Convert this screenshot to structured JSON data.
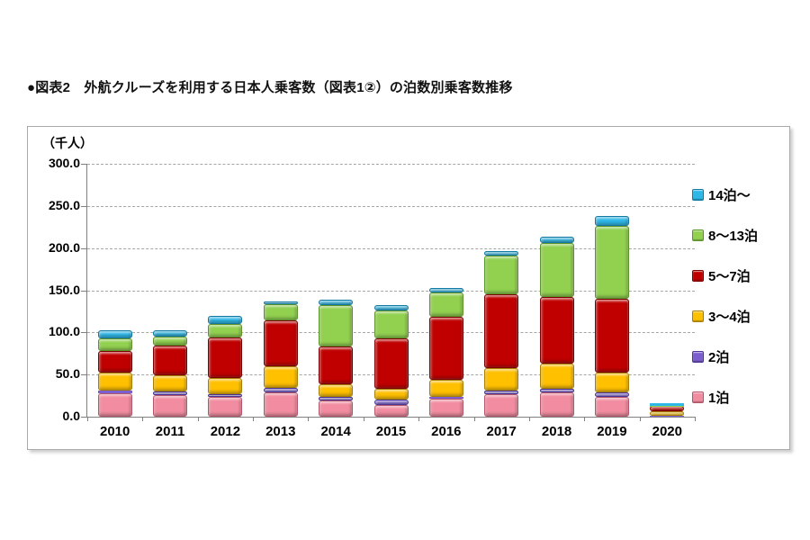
{
  "page": {
    "title": "●図表2　外航クルーズを利用する日本人乗客数（図表1②）の泊数別乗客数推移"
  },
  "chart_data": {
    "type": "bar",
    "stacked": true,
    "unit_label": "（千人）",
    "categories": [
      "2010",
      "2011",
      "2012",
      "2013",
      "2014",
      "2015",
      "2016",
      "2017",
      "2018",
      "2019",
      "2020"
    ],
    "series": [
      {
        "name": "1泊",
        "color": "#F28CA0",
        "border": "#B5566B",
        "values": [
          28,
          26,
          23,
          29,
          19,
          14,
          21,
          27,
          29,
          24,
          1
        ]
      },
      {
        "name": "2泊",
        "color": "#7B5FD0",
        "border": "#4A3494",
        "values": [
          3,
          4,
          4,
          5,
          5,
          6,
          2,
          4,
          4,
          5,
          0.5
        ]
      },
      {
        "name": "3～4泊",
        "color": "#FFC000",
        "border": "#A87F00",
        "values": [
          21,
          19,
          19,
          26,
          14,
          13,
          21,
          27,
          30,
          23,
          4.5
        ]
      },
      {
        "name": "5～7泊",
        "color": "#C00000",
        "border": "#7D0000",
        "values": [
          26,
          35,
          48,
          54,
          45,
          60,
          74,
          87,
          79,
          88,
          6.5
        ]
      },
      {
        "name": "8～13泊",
        "color": "#92D050",
        "border": "#5D9428",
        "values": [
          15,
          11,
          16,
          19,
          49,
          33,
          29,
          46,
          64,
          86,
          0.5
        ]
      },
      {
        "name": "14泊～",
        "color": "#2DB8E8",
        "border": "#1179A3",
        "values": [
          9,
          8,
          10,
          4,
          7,
          6,
          6,
          5,
          7,
          12,
          2.5
        ]
      }
    ],
    "legend_order_top_to_bottom": [
      "14泊～",
      "8～13泊",
      "5～7泊",
      "3～4泊",
      "2泊",
      "1泊"
    ],
    "ylim": [
      0,
      300
    ],
    "ytick_labels": [
      "0.0",
      "50.0",
      "100.0",
      "150.0",
      "200.0",
      "250.0",
      "300.0"
    ],
    "ytick_values": [
      0,
      50,
      100,
      150,
      200,
      250,
      300
    ],
    "grid": "dashed-horizontal",
    "legend_position": "right"
  }
}
